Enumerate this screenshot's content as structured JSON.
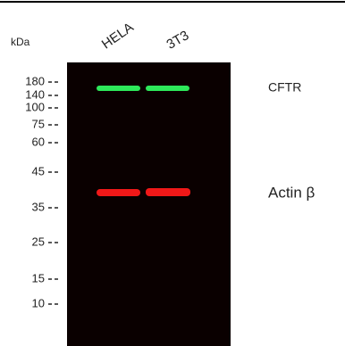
{
  "header": {
    "unit": "kDa"
  },
  "lanes": [
    "HELA",
    "3T3"
  ],
  "markers": [
    "180",
    "140",
    "100",
    "75",
    "60",
    "45",
    "35",
    "25",
    "15",
    "10"
  ],
  "bands": [
    "CFTR",
    "Actin β"
  ]
}
